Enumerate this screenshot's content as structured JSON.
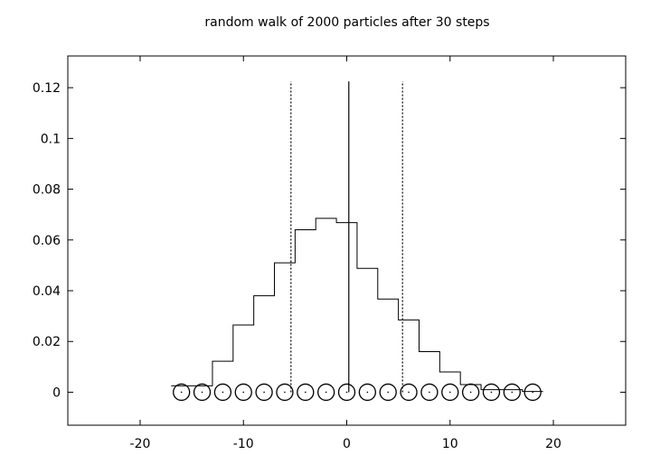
{
  "chart_data": {
    "type": "line",
    "title": "random walk of 2000 particles after 30 steps",
    "xlabel": "",
    "ylabel": "",
    "xlim": [
      -27,
      27
    ],
    "ylim": [
      -0.013,
      0.1325
    ],
    "grid": false,
    "legend": "none",
    "x_ticks": [
      -20,
      -10,
      0,
      10,
      20
    ],
    "x_tick_labels": [
      "-20",
      "-10",
      "0",
      "10",
      "20"
    ],
    "y_ticks": [
      0,
      0.02,
      0.04,
      0.06,
      0.08,
      0.1,
      0.12
    ],
    "y_tick_labels": [
      "0",
      "0.02",
      "0.04",
      "0.06",
      "0.08",
      "0.1",
      "0.12"
    ],
    "histogram": {
      "x": [
        -16,
        -14,
        -12,
        -10,
        -8,
        -6,
        -4,
        -2,
        0,
        2,
        4,
        6,
        8,
        10,
        12,
        14,
        16,
        18
      ],
      "y": [
        0.0025,
        0.0025,
        0.0122,
        0.0265,
        0.038,
        0.051,
        0.064,
        0.0685,
        0.0668,
        0.0488,
        0.0367,
        0.0285,
        0.016,
        0.008,
        0.003,
        0.001,
        0.001,
        0.0003
      ]
    },
    "particles": {
      "x": [
        -16,
        -14,
        -12,
        -10,
        -8,
        -6,
        -4,
        -2,
        0,
        2,
        4,
        6,
        8,
        10,
        12,
        14,
        16,
        18
      ],
      "y": [
        0,
        0,
        0,
        0,
        0,
        0,
        0,
        0,
        0,
        0,
        0,
        0,
        0,
        0,
        0,
        0,
        0,
        0
      ]
    },
    "mean_line": {
      "x": 0.2,
      "y_top": 0.1225
    },
    "std_lines": {
      "x": [
        -5.4,
        5.4
      ],
      "y_top": 0.1225
    }
  }
}
